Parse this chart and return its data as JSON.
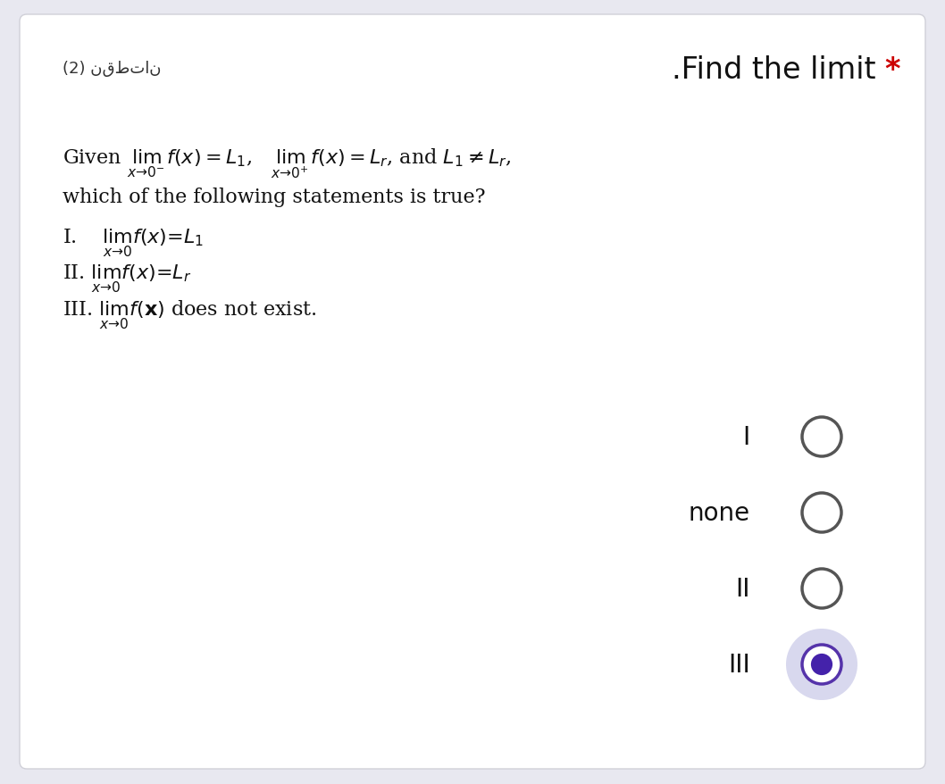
{
  "background_color": "#e8e8f0",
  "card_color": "#ffffff",
  "card_edge_color": "#d0d0d8",
  "title_text": ".Find the limit",
  "title_star": "*",
  "title_star_color": "#cc0000",
  "arabic_label": "(2) نقطتان",
  "options": [
    "I",
    "none",
    "II",
    "III"
  ],
  "selected_option": "III",
  "unselected_circle_edge": "#555555",
  "unselected_circle_face": "#ffffff",
  "selected_outer_fill": "#d8d8ee",
  "selected_mid_edge": "#5533aa",
  "selected_inner_fill": "#4422aa",
  "font_size_title": 24,
  "font_size_arabic": 13,
  "font_size_question": 16,
  "font_size_options": 20
}
